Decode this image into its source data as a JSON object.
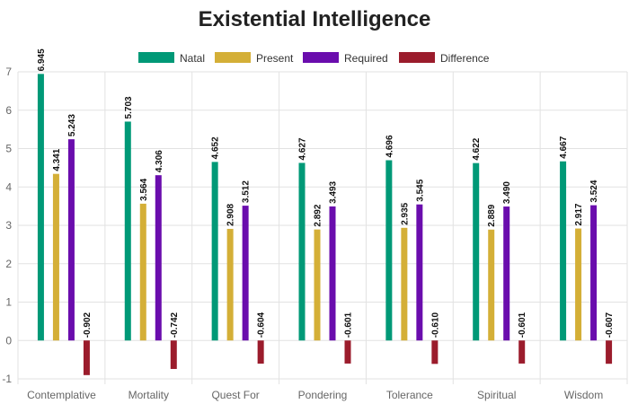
{
  "chart_data": {
    "type": "bar",
    "title": "Existential Intelligence",
    "categories": [
      "Contemplative",
      "Mortality",
      "Quest For",
      "Pondering",
      "Tolerance",
      "Spiritual",
      "Wisdom"
    ],
    "series": [
      {
        "name": "Natal",
        "color": "#009977",
        "values": [
          6.945,
          5.703,
          4.652,
          4.627,
          4.696,
          4.622,
          4.667
        ],
        "labels": [
          "6.945",
          "5.703",
          "4.652",
          "4.627",
          "4.696",
          "4.622",
          "4.667"
        ]
      },
      {
        "name": "Present",
        "color": "#d4af37",
        "values": [
          4.341,
          3.564,
          2.908,
          2.892,
          2.935,
          2.889,
          2.917
        ],
        "labels": [
          "4.341",
          "3.564",
          "2.908",
          "2.892",
          "2.935",
          "2.889",
          "2.917"
        ]
      },
      {
        "name": "Required",
        "color": "#6a0dad",
        "values": [
          5.243,
          4.306,
          3.512,
          3.493,
          3.545,
          3.49,
          3.524
        ],
        "labels": [
          "5.243",
          "4.306",
          "3.512",
          "3.493",
          "3.545",
          "3.490",
          "3.524"
        ]
      },
      {
        "name": "Difference",
        "color": "#9b1c2c",
        "values": [
          -0.902,
          -0.742,
          -0.604,
          -0.601,
          -0.61,
          -0.601,
          -0.607
        ],
        "labels": [
          "-0.902",
          "-0.742",
          "-0.604",
          "-0.601",
          "-0.610",
          "-0.601",
          "-0.607"
        ]
      }
    ],
    "y_ticks": [
      "-1",
      "0",
      "1",
      "2",
      "3",
      "4",
      "5",
      "6",
      "7"
    ],
    "ylim": [
      -1,
      7
    ],
    "grid": true,
    "legend_position": "top-center"
  }
}
